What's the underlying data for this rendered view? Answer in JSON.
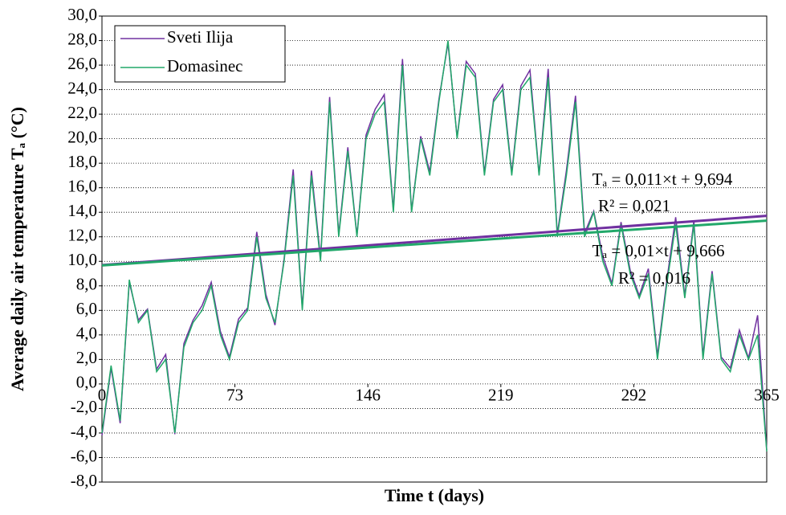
{
  "chart_data": {
    "type": "line",
    "x_label": "Time t (days)",
    "y_label": "Average daily air temperature Tₐ (°C)",
    "x": [
      0,
      5,
      10,
      15,
      20,
      25,
      30,
      35,
      40,
      45,
      50,
      55,
      60,
      65,
      70,
      75,
      80,
      85,
      90,
      95,
      100,
      105,
      110,
      115,
      120,
      125,
      130,
      135,
      140,
      145,
      150,
      155,
      160,
      165,
      170,
      175,
      180,
      185,
      190,
      195,
      200,
      205,
      210,
      215,
      220,
      225,
      230,
      235,
      240,
      245,
      250,
      255,
      260,
      265,
      270,
      275,
      280,
      285,
      290,
      295,
      300,
      305,
      310,
      315,
      320,
      325,
      330,
      335,
      340,
      345,
      350,
      355,
      360,
      365
    ],
    "series": [
      {
        "name": "Sveti Ilija",
        "color": "#7030a0",
        "trend": {
          "slope": 0.011,
          "intercept": 9.694
        },
        "values": [
          -4.2,
          1.3,
          -3.2,
          8.3,
          5.2,
          6.1,
          1.2,
          2.4,
          -4.1,
          3.3,
          5.2,
          6.4,
          8.3,
          4.3,
          2.2,
          5.3,
          6.2,
          12.4,
          7.3,
          4.8,
          10.2,
          17.5,
          6.2,
          17.4,
          10.3,
          23.4,
          12.2,
          19.3,
          12.1,
          20.3,
          22.4,
          23.6,
          14.2,
          26.5,
          14.1,
          20.2,
          17.3,
          23.2,
          27.8,
          20.1,
          26.3,
          25.3,
          17.2,
          23.2,
          24.4,
          17.2,
          24.3,
          25.6,
          17.1,
          25.7,
          12.2,
          17.4,
          23.5,
          12.3,
          14.1,
          10.4,
          8.2,
          13.2,
          9.3,
          7.2,
          9.4,
          2.3,
          8.3,
          13.6,
          7.2,
          13.3,
          2.3,
          9.2,
          2.2,
          1.3,
          4.4,
          2.1,
          5.6,
          -5.4
        ]
      },
      {
        "name": "Domasinec",
        "color": "#22a86a",
        "trend": {
          "slope": 0.01,
          "intercept": 9.666
        },
        "values": [
          -4,
          1.5,
          -3,
          8.5,
          5,
          6,
          1,
          2,
          -4,
          3,
          5,
          6,
          8,
          4,
          2,
          5,
          6,
          12,
          7,
          5,
          10,
          17,
          6,
          17,
          10,
          23,
          12,
          19,
          12,
          20,
          22,
          23,
          14,
          26,
          14,
          20,
          17,
          23,
          28,
          20,
          26,
          25,
          17,
          23,
          24,
          17,
          24,
          25,
          17,
          25,
          12,
          17,
          23,
          12,
          14,
          10,
          8,
          13,
          9,
          7,
          9,
          2,
          8,
          13,
          7,
          13,
          2,
          9,
          2,
          1,
          4,
          2,
          4,
          -5.5
        ]
      }
    ],
    "annotations": [
      {
        "text": "Tₐ = 0,011×t + 9,694"
      },
      {
        "text": "R² = 0,021"
      },
      {
        "text": "Tₐ = 0,01×t + 9,666"
      },
      {
        "text": "R² = 0,016"
      }
    ],
    "xlim": [
      0,
      365
    ],
    "xticks": [
      0,
      73,
      146,
      219,
      292,
      365
    ],
    "ylim": [
      -8,
      30
    ],
    "yticks": [
      {
        "value": -8,
        "label": "-8,0"
      },
      {
        "value": -6,
        "label": "-6,0"
      },
      {
        "value": -4,
        "label": "-4,0"
      },
      {
        "value": -2,
        "label": "-2,0"
      },
      {
        "value": 0,
        "label": "0,0"
      },
      {
        "value": 2,
        "label": "2,0"
      },
      {
        "value": 4,
        "label": "4,0"
      },
      {
        "value": 6,
        "label": "6,0"
      },
      {
        "value": 8,
        "label": "8,0"
      },
      {
        "value": 10,
        "label": "10,0"
      },
      {
        "value": 12,
        "label": "12,0"
      },
      {
        "value": 14,
        "label": "14,0"
      },
      {
        "value": 16,
        "label": "16,0"
      },
      {
        "value": 18,
        "label": "18,0"
      },
      {
        "value": 20,
        "label": "20,0"
      },
      {
        "value": 22,
        "label": "22,0"
      },
      {
        "value": 24,
        "label": "24,0"
      },
      {
        "value": 26,
        "label": "26,0"
      },
      {
        "value": 28,
        "label": "28,0"
      },
      {
        "value": 30,
        "label": "30,0"
      }
    ],
    "grid": true,
    "legend": "top-left"
  }
}
